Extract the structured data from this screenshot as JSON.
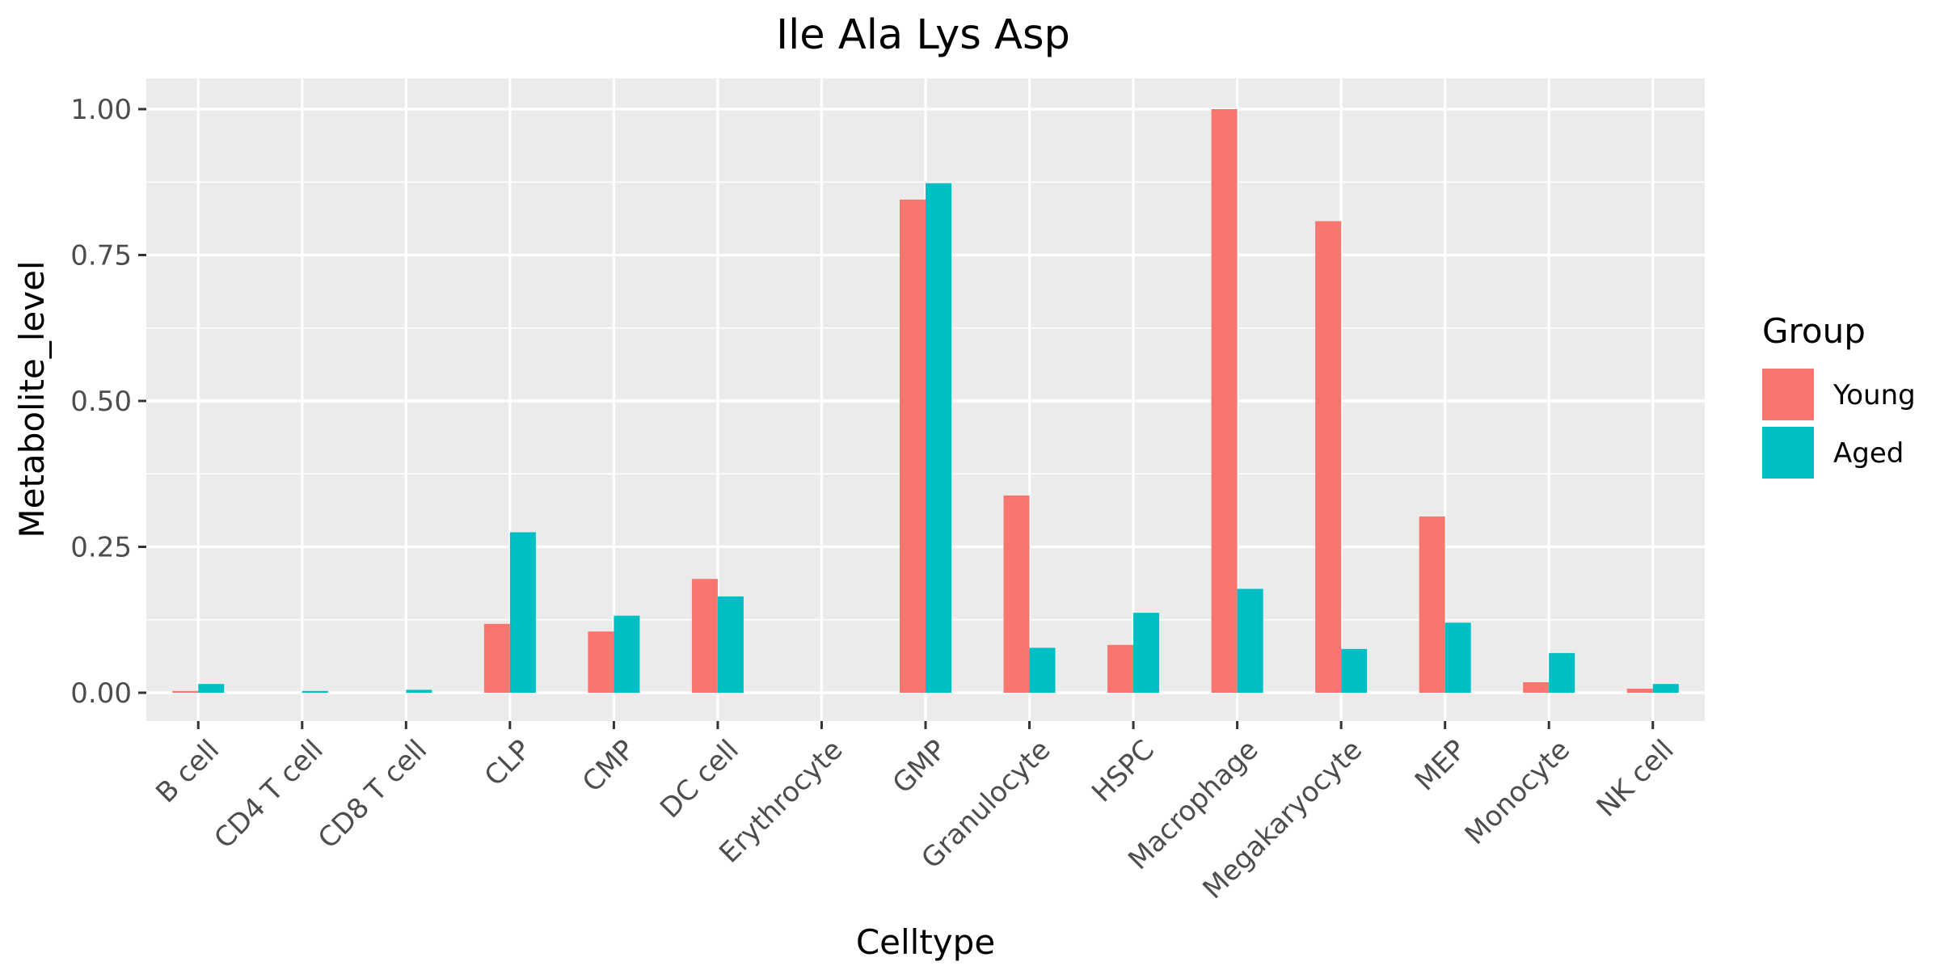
{
  "chart_data": {
    "type": "bar",
    "title": "Ile Ala Lys Asp",
    "xlabel": "Celltype",
    "ylabel": "Metabolite_level",
    "ylim": [
      -0.05,
      1.05
    ],
    "yticks": [
      0.0,
      0.25,
      0.5,
      0.75,
      1.0
    ],
    "ytick_labels": [
      "0.00",
      "0.25",
      "0.50",
      "0.75",
      "1.00"
    ],
    "grid": true,
    "legend": {
      "title": "Group",
      "position": "right"
    },
    "categories": [
      "B cell",
      "CD4 T cell",
      "CD8 T cell",
      "CLP",
      "CMP",
      "DC cell",
      "Erythrocyte",
      "GMP",
      "Granulocyte",
      "HSPC",
      "Macrophage",
      "Megakaryocyte",
      "MEP",
      "Monocyte",
      "NK cell"
    ],
    "series": [
      {
        "name": "Young",
        "color": "#F8766D",
        "values": [
          0.003,
          0.0,
          0.0,
          0.118,
          0.105,
          0.195,
          0.0,
          0.845,
          0.338,
          0.082,
          1.0,
          0.808,
          0.302,
          0.018,
          0.007
        ]
      },
      {
        "name": "Aged",
        "color": "#00BFC4",
        "values": [
          0.015,
          0.003,
          0.005,
          0.275,
          0.132,
          0.165,
          0.0,
          0.873,
          0.077,
          0.137,
          0.178,
          0.075,
          0.12,
          0.068,
          0.015
        ]
      }
    ]
  }
}
